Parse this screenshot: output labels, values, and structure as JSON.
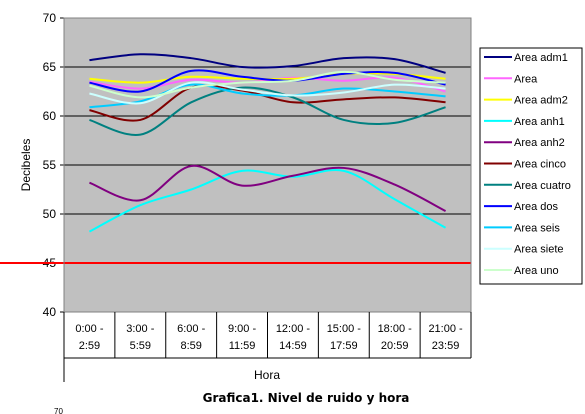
{
  "chart_data": {
    "type": "line",
    "ylabel": "Decibeles",
    "xlabel": "Hora",
    "caption": "Grafica1. Nivel de ruido y hora",
    "stray_text": "70",
    "ylim": [
      40,
      70
    ],
    "yticks": [
      40,
      45,
      50,
      55,
      60,
      65,
      70
    ],
    "grid": true,
    "legend_position": "right",
    "categories": [
      [
        "0:00 -",
        "2:59"
      ],
      [
        "3:00 -",
        "5:59"
      ],
      [
        "6:00 -",
        "8:59"
      ],
      [
        "9:00 -",
        "11:59"
      ],
      [
        "12:00 -",
        "14:59"
      ],
      [
        "15:00 -",
        "17:59"
      ],
      [
        "18:00 -",
        "20:59"
      ],
      [
        "21:00 -",
        "23:59"
      ]
    ],
    "series": [
      {
        "name": "Area adm1",
        "color": "#000080",
        "values": [
          65.7,
          66.3,
          65.9,
          65.0,
          65.1,
          65.9,
          65.8,
          64.4
        ]
      },
      {
        "name": "Area",
        "color": "#ff66ff",
        "values": [
          63.5,
          62.8,
          63.7,
          63.4,
          63.9,
          63.6,
          63.9,
          62.5
        ]
      },
      {
        "name": "Area adm2",
        "color": "#ffff00",
        "values": [
          63.8,
          63.4,
          64.0,
          63.8,
          63.8,
          64.3,
          64.3,
          63.8
        ]
      },
      {
        "name": "Area anh1",
        "color": "#00ffff",
        "values": [
          48.2,
          50.9,
          52.5,
          54.4,
          53.8,
          54.4,
          51.5,
          48.6
        ]
      },
      {
        "name": "Area anh2",
        "color": "#800080",
        "values": [
          53.2,
          51.4,
          54.9,
          52.9,
          53.9,
          54.7,
          53.0,
          50.3
        ]
      },
      {
        "name": "Area cinco",
        "color": "#800000",
        "values": [
          60.6,
          59.6,
          62.9,
          62.6,
          61.4,
          61.7,
          61.9,
          61.4
        ]
      },
      {
        "name": "Area cuatro",
        "color": "#008080",
        "values": [
          59.6,
          58.1,
          61.4,
          62.9,
          61.9,
          59.6,
          59.3,
          60.9
        ]
      },
      {
        "name": "Area dos",
        "color": "#0000ff",
        "values": [
          63.4,
          62.5,
          64.6,
          64.0,
          63.6,
          64.3,
          64.4,
          63.2
        ]
      },
      {
        "name": "Area seis",
        "color": "#00ccff",
        "values": [
          60.9,
          61.5,
          63.2,
          62.3,
          62.1,
          62.8,
          62.5,
          62.0
        ]
      },
      {
        "name": "Area siete",
        "color": "#ccffff",
        "values": [
          62.3,
          61.3,
          63.4,
          62.7,
          62.1,
          62.4,
          63.2,
          62.8
        ]
      },
      {
        "name": "Area uno",
        "color": "#ccffcc",
        "values": [
          63.1,
          61.9,
          62.9,
          63.4,
          63.6,
          64.5,
          63.7,
          63.4
        ]
      }
    ],
    "reference_line": {
      "value": 45,
      "color": "#ff0000"
    }
  }
}
